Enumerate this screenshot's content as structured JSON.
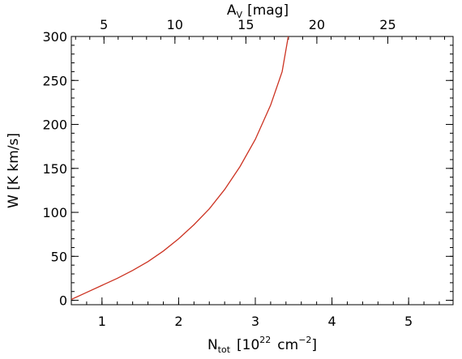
{
  "chart_data": {
    "type": "line",
    "x_axis": {
      "label_main": "N",
      "label_sub": "tot",
      "label_pre": "[10",
      "label_sup": "22",
      "label_mid": "cm",
      "label_sup2": "−2",
      "label_post": "]",
      "range": [
        0.6,
        5.58
      ],
      "ticks": [
        1,
        2,
        3,
        4,
        5
      ],
      "tick_labels": [
        "1",
        "2",
        "3",
        "4",
        "5"
      ],
      "minor_step": 0.2
    },
    "x2_axis": {
      "label_main": "A",
      "label_sub": "V",
      "label_post": "[mag]",
      "range": [
        2.7,
        29.6
      ],
      "ticks": [
        5,
        10,
        15,
        20,
        25
      ],
      "tick_labels": [
        "5",
        "10",
        "15",
        "20",
        "25"
      ],
      "minor_step": 1
    },
    "y_axis": {
      "label": "W  [K  km/s]",
      "range": [
        -5,
        300
      ],
      "ticks": [
        0,
        50,
        100,
        150,
        200,
        250,
        300
      ],
      "tick_labels": [
        "0",
        "50",
        "100",
        "150",
        "200",
        "250",
        "300"
      ],
      "minor_step": 10
    },
    "series": [
      {
        "color": "#cc3322",
        "points": [
          [
            0.6,
            1
          ],
          [
            0.8,
            9
          ],
          [
            1.0,
            17
          ],
          [
            1.2,
            25
          ],
          [
            1.4,
            34
          ],
          [
            1.6,
            44
          ],
          [
            1.8,
            56
          ],
          [
            2.0,
            70
          ],
          [
            2.2,
            86
          ],
          [
            2.4,
            104
          ],
          [
            2.6,
            126
          ],
          [
            2.8,
            152
          ],
          [
            3.0,
            183
          ],
          [
            3.2,
            222
          ],
          [
            3.35,
            260
          ],
          [
            3.43,
            300
          ]
        ]
      }
    ],
    "grid": false,
    "legend": "none"
  }
}
